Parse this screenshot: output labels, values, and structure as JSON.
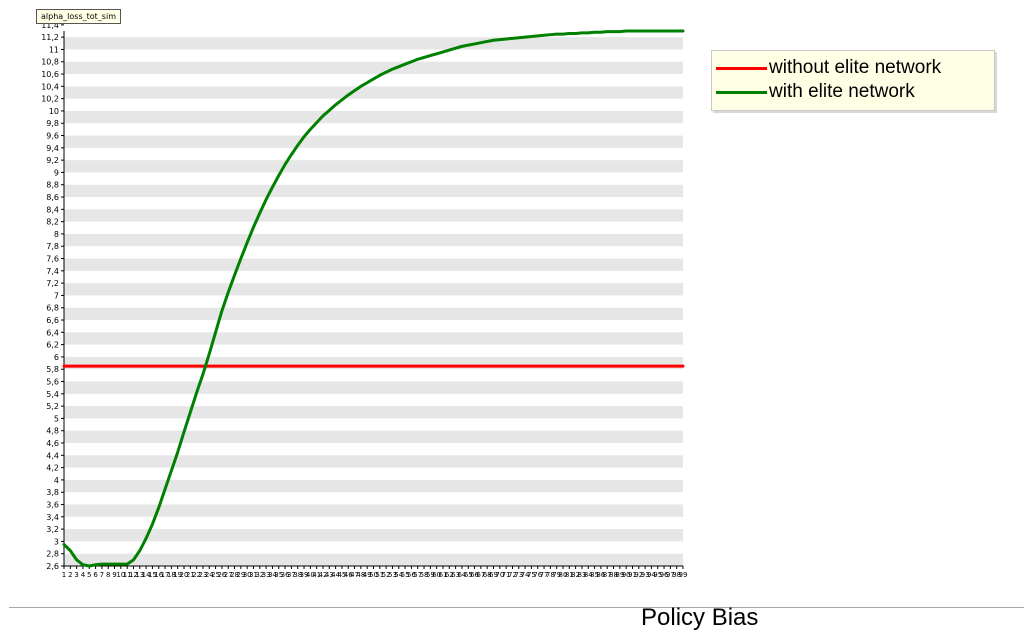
{
  "variable_tag": "alpha_loss_tot_sim",
  "caption": "Policy Bias",
  "colors": {
    "without": "#ff0000",
    "with": "#008000",
    "stripe": "#e6e6e6"
  },
  "chart_data": {
    "type": "line",
    "title": "",
    "xlabel": "",
    "ylabel": "",
    "ylim": [
      2.6,
      11.3
    ],
    "ytick_step": 0.2,
    "grid": "horizontal alternating bands",
    "legend_position": "top-right",
    "x": [
      1,
      2,
      3,
      4,
      5,
      6,
      7,
      8,
      9,
      10,
      11,
      12,
      13,
      14,
      15,
      16,
      17,
      18,
      19,
      20,
      21,
      22,
      23,
      24,
      25,
      26,
      27,
      28,
      29,
      30,
      31,
      32,
      33,
      34,
      35,
      36,
      37,
      38,
      39,
      40,
      41,
      42,
      43,
      44,
      45,
      46,
      47,
      48,
      49,
      50,
      51,
      52,
      53,
      54,
      55,
      56,
      57,
      58,
      59,
      60,
      61,
      62,
      63,
      64,
      65,
      66,
      67,
      68,
      69,
      70,
      71,
      72,
      73,
      74,
      75,
      76,
      77,
      78,
      79,
      80,
      81,
      82,
      83,
      84,
      85,
      86,
      87,
      88,
      89,
      90,
      91,
      92,
      93,
      94,
      95,
      96,
      97,
      98,
      99
    ],
    "series": [
      {
        "name": "without elite network",
        "color": "#ff0000",
        "values": [
          5.85,
          5.85,
          5.85,
          5.85,
          5.85,
          5.85,
          5.85,
          5.85,
          5.85,
          5.85,
          5.85,
          5.85,
          5.85,
          5.85,
          5.85,
          5.85,
          5.85,
          5.85,
          5.85,
          5.85,
          5.85,
          5.85,
          5.85,
          5.85,
          5.85,
          5.85,
          5.85,
          5.85,
          5.85,
          5.85,
          5.85,
          5.85,
          5.85,
          5.85,
          5.85,
          5.85,
          5.85,
          5.85,
          5.85,
          5.85,
          5.85,
          5.85,
          5.85,
          5.85,
          5.85,
          5.85,
          5.85,
          5.85,
          5.85,
          5.85,
          5.85,
          5.85,
          5.85,
          5.85,
          5.85,
          5.85,
          5.85,
          5.85,
          5.85,
          5.85,
          5.85,
          5.85,
          5.85,
          5.85,
          5.85,
          5.85,
          5.85,
          5.85,
          5.85,
          5.85,
          5.85,
          5.85,
          5.85,
          5.85,
          5.85,
          5.85,
          5.85,
          5.85,
          5.85,
          5.85,
          5.85,
          5.85,
          5.85,
          5.85,
          5.85,
          5.85,
          5.85,
          5.85,
          5.85,
          5.85,
          5.85,
          5.85,
          5.85,
          5.85,
          5.85,
          5.85,
          5.85,
          5.85,
          5.85
        ]
      },
      {
        "name": "with elite network",
        "color": "#008000",
        "values": [
          2.95,
          2.85,
          2.7,
          2.62,
          2.6,
          2.62,
          2.63,
          2.63,
          2.63,
          2.63,
          2.63,
          2.7,
          2.85,
          3.05,
          3.28,
          3.55,
          3.85,
          4.15,
          4.45,
          4.78,
          5.1,
          5.42,
          5.72,
          6.05,
          6.4,
          6.75,
          7.05,
          7.33,
          7.6,
          7.86,
          8.11,
          8.34,
          8.56,
          8.76,
          8.95,
          9.13,
          9.29,
          9.44,
          9.58,
          9.7,
          9.81,
          9.92,
          10.01,
          10.1,
          10.18,
          10.26,
          10.33,
          10.4,
          10.46,
          10.52,
          10.58,
          10.63,
          10.68,
          10.72,
          10.76,
          10.8,
          10.84,
          10.87,
          10.9,
          10.93,
          10.96,
          10.99,
          11.02,
          11.05,
          11.07,
          11.09,
          11.11,
          11.13,
          11.15,
          11.16,
          11.17,
          11.18,
          11.19,
          11.2,
          11.21,
          11.22,
          11.23,
          11.24,
          11.25,
          11.25,
          11.26,
          11.26,
          11.27,
          11.27,
          11.28,
          11.28,
          11.29,
          11.29,
          11.29,
          11.3,
          11.3,
          11.3,
          11.3,
          11.3,
          11.3,
          11.3,
          11.3,
          11.3,
          11.3
        ]
      }
    ]
  }
}
